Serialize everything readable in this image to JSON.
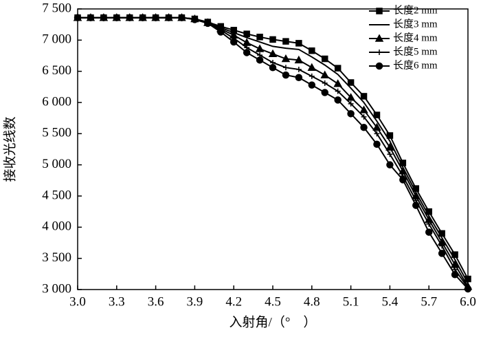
{
  "chart_data": {
    "type": "line",
    "x_label": "入射角/（°　）",
    "y_label": "接收光线数",
    "x": [
      3.0,
      3.1,
      3.2,
      3.3,
      3.4,
      3.5,
      3.6,
      3.7,
      3.8,
      3.9,
      4.0,
      4.1,
      4.2,
      4.3,
      4.4,
      4.5,
      4.6,
      4.7,
      4.8,
      4.9,
      5.0,
      5.1,
      5.2,
      5.3,
      5.4,
      5.5,
      5.6,
      5.7,
      5.8,
      5.9,
      6.0
    ],
    "series": [
      {
        "name": "长度2 mm",
        "color": "#000000",
        "marker": "square",
        "values": [
          7360,
          7360,
          7360,
          7360,
          7360,
          7360,
          7360,
          7360,
          7360,
          7340,
          7290,
          7220,
          7160,
          7100,
          7050,
          7010,
          6980,
          6950,
          6830,
          6700,
          6550,
          6320,
          6100,
          5800,
          5470,
          5030,
          4620,
          4250,
          3900,
          3560,
          3170
        ]
      },
      {
        "name": "长度3 mm",
        "color": "#000000",
        "marker": "none",
        "values": [
          7360,
          7360,
          7360,
          7360,
          7360,
          7360,
          7360,
          7360,
          7360,
          7340,
          7285,
          7200,
          7120,
          7040,
          6970,
          6900,
          6870,
          6850,
          6730,
          6600,
          6450,
          6230,
          6000,
          5700,
          5380,
          4960,
          4560,
          4180,
          3830,
          3480,
          3100
        ]
      },
      {
        "name": "长度4 mm",
        "color": "#000000",
        "marker": "triangle",
        "values": [
          7360,
          7360,
          7360,
          7360,
          7360,
          7360,
          7360,
          7360,
          7360,
          7340,
          7280,
          7180,
          7080,
          6960,
          6860,
          6780,
          6700,
          6680,
          6560,
          6440,
          6300,
          6080,
          5880,
          5600,
          5280,
          4900,
          4500,
          4120,
          3760,
          3400,
          3050
        ]
      },
      {
        "name": "长度5 mm",
        "color": "#000000",
        "marker": "plus",
        "values": [
          7360,
          7360,
          7360,
          7360,
          7360,
          7360,
          7360,
          7360,
          7360,
          7335,
          7275,
          7160,
          7030,
          6880,
          6760,
          6640,
          6560,
          6530,
          6420,
          6310,
          6180,
          5980,
          5770,
          5500,
          5170,
          4820,
          4430,
          4050,
          3700,
          3320,
          3030
        ]
      },
      {
        "name": "长度6 mm",
        "color": "#000000",
        "marker": "circle",
        "values": [
          7360,
          7360,
          7360,
          7360,
          7360,
          7360,
          7360,
          7360,
          7360,
          7330,
          7270,
          7130,
          6970,
          6800,
          6680,
          6560,
          6440,
          6400,
          6280,
          6160,
          6040,
          5820,
          5600,
          5330,
          5000,
          4760,
          4350,
          3920,
          3580,
          3240,
          3010
        ]
      }
    ],
    "xlim": [
      3.0,
      6.0
    ],
    "xticks": [
      {
        "value": 3.0,
        "label": "3.0"
      },
      3.3,
      3.6,
      3.9,
      4.2,
      4.5,
      4.8,
      5.1,
      5.4,
      5.7,
      {
        "value": 6.0,
        "label": "6.0"
      }
    ],
    "ylim": [
      3000,
      7500
    ],
    "yticks": [
      {
        "value": 3000,
        "label": "3 000"
      },
      {
        "value": 3500,
        "label": "3 500"
      },
      {
        "value": 4000,
        "label": "4 000"
      },
      {
        "value": 4500,
        "label": "4 500"
      },
      {
        "value": 5000,
        "label": "5 000"
      },
      {
        "value": 5500,
        "label": "5 500"
      },
      {
        "value": 6000,
        "label": "6 000"
      },
      {
        "value": 6500,
        "label": "6 500"
      },
      {
        "value": 7000,
        "label": "7 000"
      },
      {
        "value": 7500,
        "label": "7 500"
      }
    ],
    "grid": false,
    "legend": "top-right"
  }
}
